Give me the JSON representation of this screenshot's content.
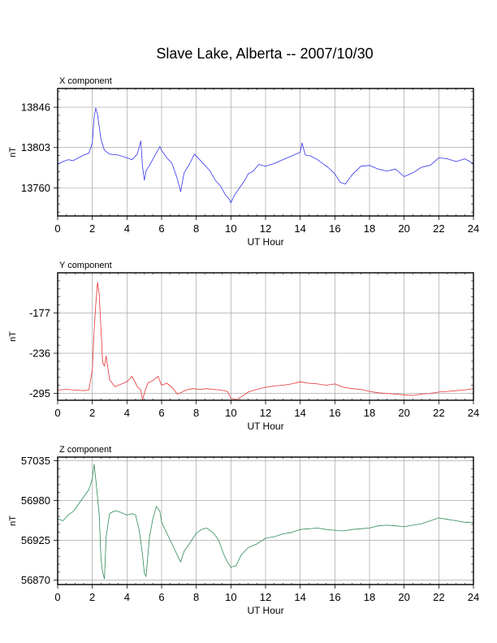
{
  "title": "Slave Lake, Alberta -- 2007/10/30",
  "chart_data": [
    {
      "type": "line",
      "panel_title": "X component",
      "xlabel": "UT Hour",
      "ylabel": "nT",
      "xlim": [
        0,
        24
      ],
      "ylim": [
        13730,
        13866
      ],
      "xticks": [
        0,
        2,
        4,
        6,
        8,
        10,
        12,
        14,
        16,
        18,
        20,
        22,
        24
      ],
      "yticks": [
        13760,
        13803,
        13846
      ],
      "grid": true,
      "color": "#3333ee",
      "series": [
        {
          "x": [
            0,
            0.3,
            0.6,
            0.9,
            1.2,
            1.5,
            1.8,
            2.0,
            2.1,
            2.2,
            2.3,
            2.4,
            2.5,
            2.7,
            3.0,
            3.5,
            4.0,
            4.3,
            4.6,
            4.8,
            4.9,
            5.0,
            5.1,
            5.3,
            5.6,
            5.9,
            6.0,
            6.3,
            6.6,
            6.9,
            7.1,
            7.3,
            7.6,
            7.9,
            8.2,
            8.5,
            8.8,
            9.1,
            9.4,
            9.7,
            9.9,
            10.0,
            10.2,
            10.5,
            10.8,
            11.0,
            11.3,
            11.6,
            12.0,
            12.5,
            13.0,
            13.5,
            14.0,
            14.1,
            14.3,
            14.6,
            15.0,
            15.3,
            15.6,
            16.0,
            16.3,
            16.6,
            17.0,
            17.5,
            18.0,
            18.5,
            19.0,
            19.5,
            20.0,
            20.5,
            21.0,
            21.5,
            22.0,
            22.5,
            23.0,
            23.5,
            24.0
          ],
          "y": [
            13785,
            13788,
            13790,
            13789,
            13792,
            13795,
            13797,
            13808,
            13835,
            13845,
            13838,
            13825,
            13812,
            13800,
            13796,
            13795,
            13792,
            13790,
            13796,
            13810,
            13783,
            13768,
            13778,
            13784,
            13794,
            13804,
            13800,
            13792,
            13786,
            13770,
            13756,
            13776,
            13785,
            13796,
            13790,
            13784,
            13778,
            13768,
            13762,
            13752,
            13748,
            13744,
            13752,
            13760,
            13768,
            13775,
            13778,
            13785,
            13783,
            13786,
            13790,
            13794,
            13798,
            13808,
            13795,
            13794,
            13790,
            13786,
            13782,
            13775,
            13766,
            13764,
            13774,
            13783,
            13784,
            13780,
            13778,
            13780,
            13772,
            13776,
            13782,
            13784,
            13792,
            13791,
            13788,
            13791,
            13786
          ]
        }
      ]
    },
    {
      "type": "line",
      "panel_title": "Y component",
      "xlabel": "UT Hour",
      "ylabel": "nT",
      "xlim": [
        0,
        24
      ],
      "ylim": [
        -305,
        -118
      ],
      "xticks": [
        0,
        2,
        4,
        6,
        8,
        10,
        12,
        14,
        16,
        18,
        20,
        22,
        24
      ],
      "yticks": [
        -295,
        -236,
        -177
      ],
      "grid": true,
      "color": "#e83333",
      "series": [
        {
          "x": [
            0,
            0.5,
            1.0,
            1.5,
            1.8,
            2.0,
            2.1,
            2.2,
            2.3,
            2.4,
            2.5,
            2.6,
            2.7,
            2.8,
            3.0,
            3.3,
            3.6,
            4.0,
            4.3,
            4.6,
            4.8,
            4.9,
            5.0,
            5.2,
            5.5,
            5.8,
            6.0,
            6.3,
            6.6,
            6.9,
            7.1,
            7.4,
            7.8,
            8.2,
            8.6,
            9.0,
            9.4,
            9.8,
            10.0,
            10.3,
            10.6,
            11.0,
            11.5,
            12.0,
            12.5,
            13.0,
            13.5,
            14.0,
            14.5,
            15.0,
            15.5,
            16.0,
            16.5,
            17.0,
            17.5,
            18.0,
            18.5,
            19.0,
            19.5,
            20.0,
            20.5,
            21.0,
            21.5,
            22.0,
            22.5,
            23.0,
            23.5,
            24.0
          ],
          "y": [
            -290,
            -289,
            -290,
            -291,
            -290,
            -260,
            -205,
            -165,
            -132,
            -150,
            -200,
            -250,
            -255,
            -240,
            -275,
            -285,
            -282,
            -278,
            -270,
            -285,
            -290,
            -304,
            -295,
            -280,
            -276,
            -270,
            -283,
            -280,
            -286,
            -296,
            -294,
            -290,
            -288,
            -289,
            -288,
            -289,
            -290,
            -292,
            -302,
            -304,
            -300,
            -293,
            -289,
            -286,
            -284,
            -283,
            -281,
            -278,
            -280,
            -281,
            -283,
            -281,
            -286,
            -288,
            -289,
            -292,
            -294,
            -295,
            -296,
            -297,
            -298,
            -296,
            -295,
            -293,
            -292,
            -291,
            -290,
            -288
          ]
        }
      ]
    },
    {
      "type": "line",
      "panel_title": "Z component",
      "xlabel": "UT Hour",
      "ylabel": "nT",
      "xlim": [
        0,
        24
      ],
      "ylim": [
        56864,
        57040
      ],
      "xticks": [
        0,
        2,
        4,
        6,
        8,
        10,
        12,
        14,
        16,
        18,
        20,
        22,
        24
      ],
      "yticks": [
        56870,
        56925,
        56980,
        57035
      ],
      "grid": true,
      "color": "#2e8b57",
      "series": [
        {
          "x": [
            0,
            0.3,
            0.6,
            0.9,
            1.2,
            1.5,
            1.8,
            2.0,
            2.1,
            2.2,
            2.4,
            2.5,
            2.6,
            2.7,
            2.8,
            3.0,
            3.3,
            3.6,
            4.0,
            4.3,
            4.5,
            4.7,
            4.9,
            5.0,
            5.1,
            5.3,
            5.5,
            5.7,
            5.9,
            6.0,
            6.3,
            6.6,
            7.0,
            7.1,
            7.3,
            7.6,
            8.0,
            8.3,
            8.6,
            9.0,
            9.3,
            9.6,
            9.8,
            10.0,
            10.3,
            10.6,
            11.0,
            11.5,
            12.0,
            12.5,
            13.0,
            13.5,
            14.0,
            14.5,
            15.0,
            15.5,
            16.0,
            16.5,
            17.0,
            17.5,
            18.0,
            18.5,
            19.0,
            19.5,
            20.0,
            20.5,
            21.0,
            21.5,
            22.0,
            22.5,
            23.0,
            23.5,
            24.0
          ],
          "y": [
            56955,
            56952,
            56960,
            56965,
            56975,
            56985,
            56995,
            57010,
            57030,
            57010,
            56960,
            56900,
            56880,
            56872,
            56930,
            56962,
            56966,
            56964,
            56960,
            56962,
            56960,
            56940,
            56905,
            56880,
            56875,
            56930,
            56955,
            56972,
            56965,
            56950,
            56935,
            56920,
            56900,
            56895,
            56910,
            56920,
            56935,
            56940,
            56942,
            56935,
            56925,
            56905,
            56895,
            56888,
            56890,
            56905,
            56915,
            56920,
            56928,
            56930,
            56934,
            56936,
            56940,
            56941,
            56942,
            56940,
            56939,
            56938,
            56940,
            56941,
            56942,
            56945,
            56946,
            56945,
            56944,
            56946,
            56948,
            56952,
            56956,
            56954,
            56952,
            56950,
            56950
          ]
        }
      ]
    }
  ]
}
